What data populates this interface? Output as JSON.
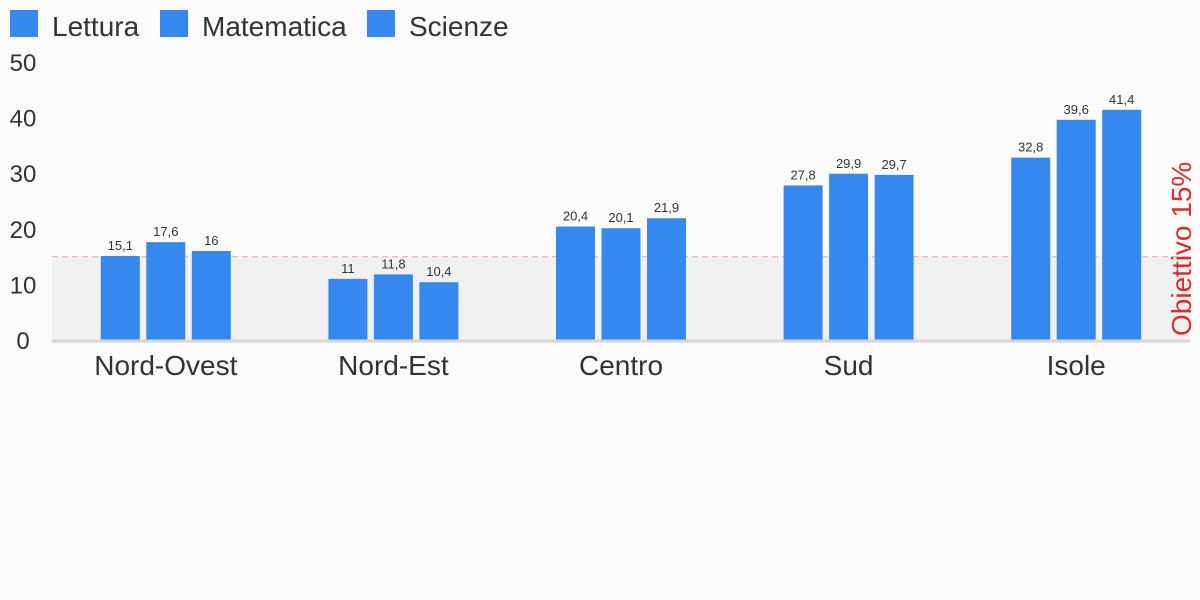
{
  "chart_data": {
    "type": "bar",
    "categories": [
      "Nord-Ovest",
      "Nord-Est",
      "Centro",
      "Sud",
      "Isole"
    ],
    "series": [
      {
        "name": "Lettura",
        "values": [
          15.1,
          11,
          20.4,
          27.8,
          32.8
        ],
        "labels": [
          "15,1",
          "11",
          "20,4",
          "27,8",
          "32,8"
        ]
      },
      {
        "name": "Matematica",
        "values": [
          17.6,
          11.8,
          20.1,
          29.9,
          39.6
        ],
        "labels": [
          "17,6",
          "11,8",
          "20,1",
          "29,9",
          "39,6"
        ]
      },
      {
        "name": "Scienze",
        "values": [
          16,
          10.4,
          21.9,
          29.7,
          41.4
        ],
        "labels": [
          "16",
          "10,4",
          "21,9",
          "29,7",
          "41,4"
        ]
      }
    ],
    "yticks": [
      "0",
      "10",
      "20",
      "30",
      "40",
      "50"
    ],
    "ylim": [
      0,
      50
    ],
    "reference_line": {
      "value": 15,
      "label": "Obiettivo 15%",
      "color": "#d32f2f"
    },
    "series_color": "#3589ee",
    "grid": false,
    "legend_position": "top-left"
  }
}
